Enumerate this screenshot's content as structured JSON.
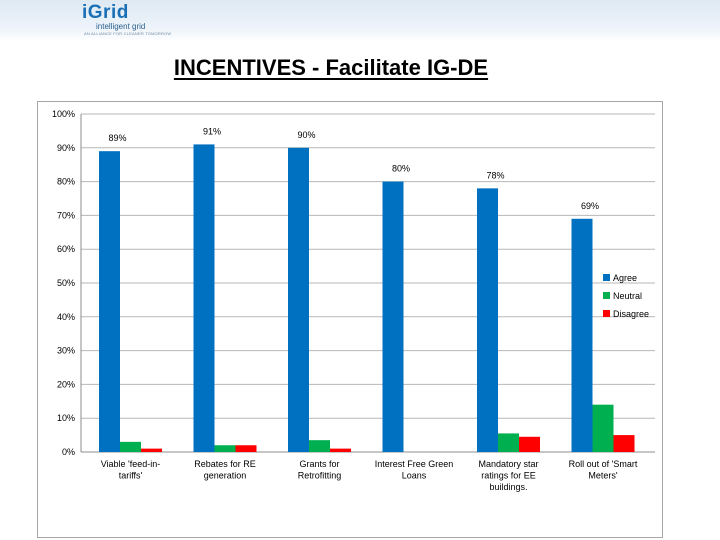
{
  "header": {
    "logo_mark": "iGrid",
    "logo_sub": "intelligent grid",
    "logo_tagline": "AN ALLIANCE FOR CLEANER TOMORROW"
  },
  "chart_data": {
    "type": "bar",
    "title": "INCENTIVES - Facilitate IG-DE",
    "xlabel": "",
    "ylabel": "",
    "ylim": [
      0,
      100
    ],
    "yticks": [
      0,
      10,
      20,
      30,
      40,
      50,
      60,
      70,
      80,
      90,
      100
    ],
    "ytick_suffix": "%",
    "grid": true,
    "legend_position": "right",
    "categories": [
      [
        "Viable 'feed-in-",
        "tariffs'"
      ],
      [
        "Rebates for RE",
        "generation"
      ],
      [
        "Grants for",
        "Retrofitting"
      ],
      [
        "Interest Free Green",
        "Loans"
      ],
      [
        "Mandatory star",
        "ratings for EE",
        "buildings."
      ],
      [
        "Roll out of 'Smart",
        "Meters'"
      ]
    ],
    "series": [
      {
        "name": "Agree",
        "color": "#0070c0",
        "values": [
          89,
          91,
          90,
          80,
          78,
          69
        ],
        "labels": [
          "89%",
          "91%",
          "90%",
          "80%",
          "78%",
          "69%"
        ]
      },
      {
        "name": "Neutral",
        "color": "#00b050",
        "values": [
          3,
          2,
          3.5,
          0,
          5.5,
          14
        ]
      },
      {
        "name": "Disagree",
        "color": "#ff0000",
        "values": [
          1,
          2,
          1,
          0,
          4.5,
          5
        ]
      }
    ]
  }
}
